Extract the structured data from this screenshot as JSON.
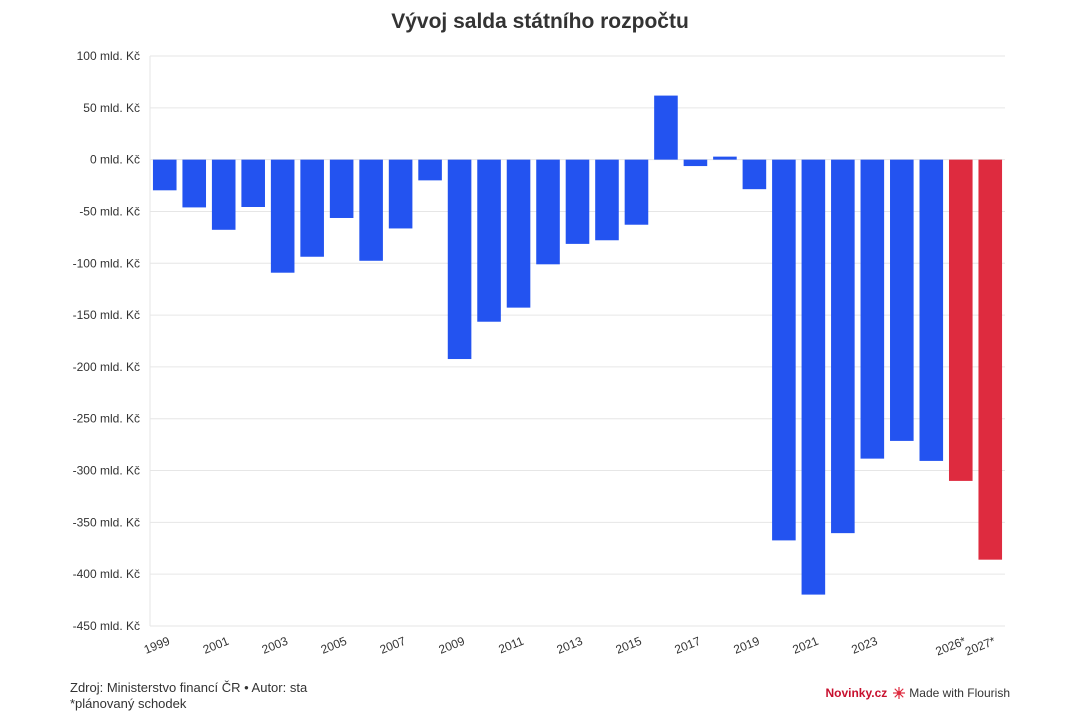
{
  "chart_data": {
    "type": "bar",
    "title": "Vývoj salda státního rozpočtu",
    "categories": [
      "1999",
      "2000",
      "2001",
      "2002",
      "2003",
      "2004",
      "2005",
      "2006",
      "2007",
      "2008",
      "2009",
      "2010",
      "2011",
      "2012",
      "2013",
      "2014",
      "2015",
      "2016",
      "2017",
      "2018",
      "2019",
      "2020",
      "2021",
      "2022",
      "2023",
      "2024",
      "2025",
      "2026*",
      "2027*"
    ],
    "x_tick_labels": [
      "1999",
      "2001",
      "2003",
      "2005",
      "2007",
      "2009",
      "2011",
      "2013",
      "2015",
      "2017",
      "2019",
      "2021",
      "2023",
      "2026*",
      "2027*"
    ],
    "values": [
      -29.6,
      -46.1,
      -67.7,
      -45.7,
      -109.1,
      -93.7,
      -56.3,
      -97.6,
      -66.4,
      -20.0,
      -192.4,
      -156.4,
      -142.8,
      -101.0,
      -81.3,
      -77.8,
      -62.8,
      61.8,
      -6.2,
      2.9,
      -28.5,
      -367.4,
      -419.7,
      -360.4,
      -288.5,
      -271.4,
      -290.7,
      -310.0,
      -386.0
    ],
    "planned": [
      false,
      false,
      false,
      false,
      false,
      false,
      false,
      false,
      false,
      false,
      false,
      false,
      false,
      false,
      false,
      false,
      false,
      false,
      false,
      false,
      false,
      false,
      false,
      false,
      false,
      false,
      false,
      true,
      true
    ],
    "y_ticks": [
      100,
      50,
      0,
      -50,
      -100,
      -150,
      -200,
      -250,
      -300,
      -350,
      -400,
      -450
    ],
    "y_tick_suffix": " mld. Kč",
    "ylim": [
      -450,
      100
    ],
    "grid": true,
    "colors": {
      "actual": "#2353f0",
      "planned": "#de2b3f",
      "grid": "#e6e6e6",
      "axis_text": "#333333"
    }
  },
  "footer": {
    "source": "Zdroj: Ministerstvo financí ČR • Autor: sta",
    "note": "*plánovaný schodek"
  },
  "branding": {
    "publisher": "Novinky.cz",
    "made_with": "Made with Flourish",
    "icon": "flourish-logo-icon"
  }
}
